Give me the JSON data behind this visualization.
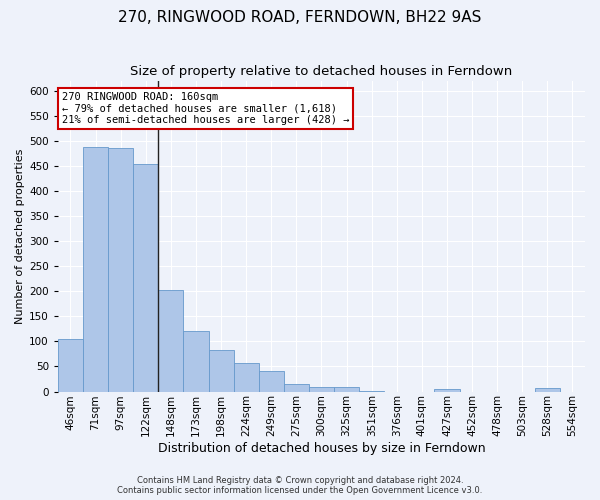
{
  "title": "270, RINGWOOD ROAD, FERNDOWN, BH22 9AS",
  "subtitle": "Size of property relative to detached houses in Ferndown",
  "xlabel": "Distribution of detached houses by size in Ferndown",
  "ylabel": "Number of detached properties",
  "categories": [
    "46sqm",
    "71sqm",
    "97sqm",
    "122sqm",
    "148sqm",
    "173sqm",
    "198sqm",
    "224sqm",
    "249sqm",
    "275sqm",
    "300sqm",
    "325sqm",
    "351sqm",
    "376sqm",
    "401sqm",
    "427sqm",
    "452sqm",
    "478sqm",
    "503sqm",
    "528sqm",
    "554sqm"
  ],
  "values": [
    105,
    487,
    486,
    453,
    202,
    120,
    82,
    57,
    40,
    15,
    10,
    10,
    2,
    0,
    0,
    5,
    0,
    0,
    0,
    7,
    0
  ],
  "bar_color": "#aec6e8",
  "bar_edge_color": "#6699cc",
  "vline_index": 4,
  "vline_color": "#222222",
  "annotation_text": "270 RINGWOOD ROAD: 160sqm\n← 79% of detached houses are smaller (1,618)\n21% of semi-detached houses are larger (428) →",
  "annotation_box_color": "#ffffff",
  "annotation_box_edge": "#cc0000",
  "ylim": [
    0,
    620
  ],
  "yticks": [
    0,
    50,
    100,
    150,
    200,
    250,
    300,
    350,
    400,
    450,
    500,
    550,
    600
  ],
  "background_color": "#eef2fa",
  "grid_color": "#ffffff",
  "footer_text": "Contains HM Land Registry data © Crown copyright and database right 2024.\nContains public sector information licensed under the Open Government Licence v3.0.",
  "title_fontsize": 11,
  "subtitle_fontsize": 9.5,
  "xlabel_fontsize": 9,
  "ylabel_fontsize": 8,
  "tick_fontsize": 7.5,
  "annotation_fontsize": 7.5,
  "footer_fontsize": 6
}
